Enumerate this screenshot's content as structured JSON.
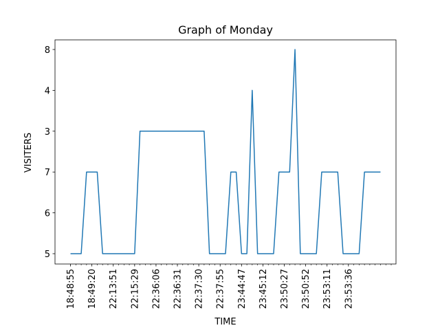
{
  "chart_data": {
    "type": "line",
    "title": "Graph of Monday",
    "xlabel": "TIME",
    "ylabel": "VISITERS",
    "y_categories": [
      "5",
      "6",
      "7",
      "3",
      "4",
      "8"
    ],
    "x_tick_labels": [
      "18:48:55",
      "18:49:20",
      "22:13:51",
      "22:15:29",
      "22:36:06",
      "22:36:31",
      "22:37:30",
      "22:37:55",
      "23:44:47",
      "23:45:12",
      "23:50:27",
      "23:50:52",
      "23:53:11",
      "23:53:36"
    ],
    "series": [
      {
        "color": "#1f77b4",
        "values": [
          "5",
          "5",
          "5",
          "7",
          "7",
          "7",
          "5",
          "5",
          "5",
          "5",
          "5",
          "5",
          "5",
          "3",
          "3",
          "3",
          "3",
          "3",
          "3",
          "3",
          "3",
          "3",
          "3",
          "3",
          "3",
          "3",
          "5",
          "5",
          "5",
          "5",
          "7",
          "7",
          "5",
          "5",
          "4",
          "5",
          "5",
          "5",
          "5",
          "7",
          "7",
          "7",
          "8",
          "5",
          "5",
          "5",
          "5",
          "7",
          "7",
          "7",
          "7",
          "5",
          "5",
          "5",
          "5",
          "7",
          "7",
          "7",
          "7"
        ]
      }
    ],
    "grid": false,
    "legend": "none"
  }
}
